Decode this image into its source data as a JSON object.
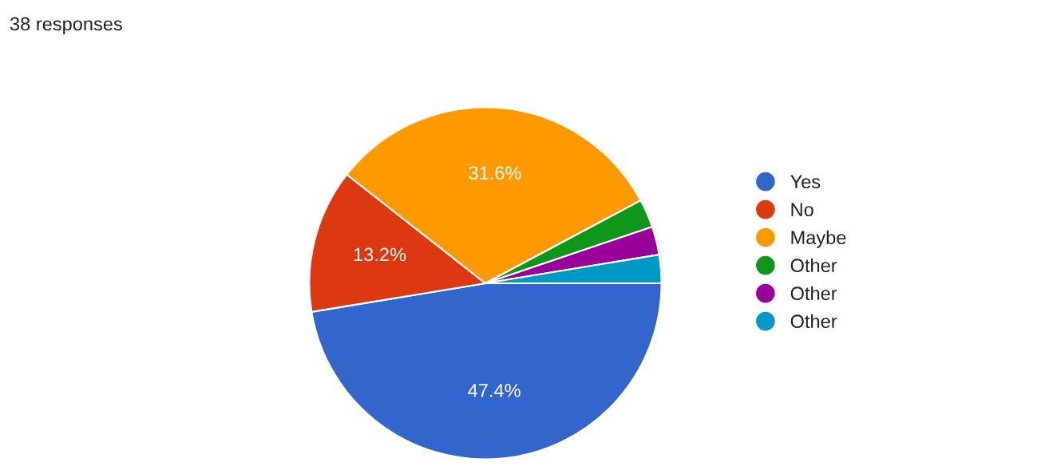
{
  "chart_data": {
    "type": "pie",
    "title": "38 responses",
    "categories": [
      "Yes",
      "No",
      "Maybe",
      "Other",
      "Other",
      "Other"
    ],
    "values": [
      47.4,
      13.2,
      31.6,
      2.6,
      2.6,
      2.6
    ],
    "value_labels": [
      "47.4%",
      "13.2%",
      "31.6%",
      null,
      null,
      null
    ],
    "colors": [
      "#3366cc",
      "#dc3912",
      "#ff9900",
      "#109618",
      "#990099",
      "#0099c6"
    ],
    "legend": "right"
  }
}
